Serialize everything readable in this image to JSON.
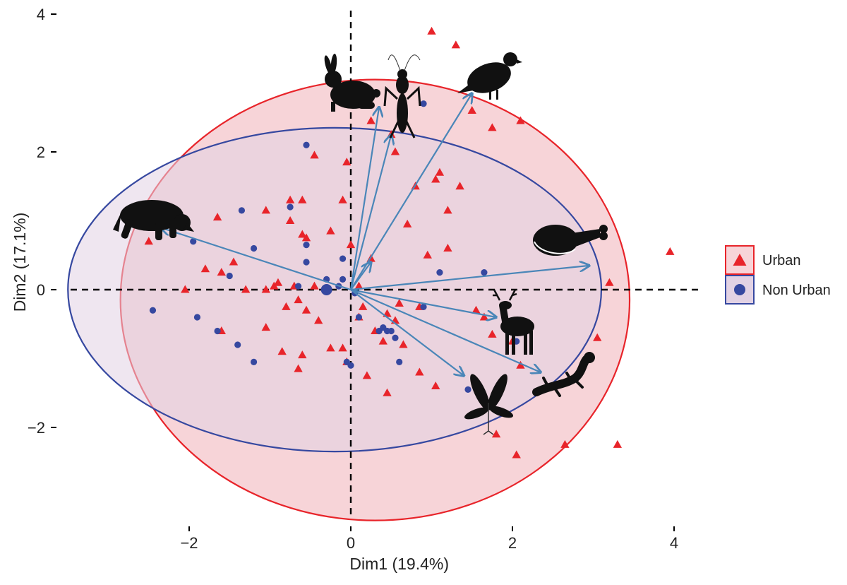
{
  "chart_data": {
    "type": "scatter",
    "subtype": "pca-biplot",
    "xlabel": "Dim1 (19.4%)",
    "ylabel": "Dim2 (17.1%)",
    "xlim": [
      -3.6,
      4.6
    ],
    "ylim": [
      -3.4,
      4.1
    ],
    "x_ticks": [
      -2,
      0,
      2,
      4
    ],
    "y_ticks": [
      -2,
      0,
      2,
      4
    ],
    "x_tick_labels": [
      "−2",
      "0",
      "2",
      "4"
    ],
    "y_tick_labels": [
      "−2",
      "0",
      "2",
      "4"
    ],
    "grid": false,
    "zero_lines": "dashed",
    "legend_position": "right",
    "series": [
      {
        "name": "Urban",
        "marker": "triangle",
        "color": "#e8242a",
        "fill": "#f7d4d8",
        "ellipse": {
          "center": [
            0.3,
            -0.15
          ],
          "rx": 3.15,
          "ry": 3.2
        },
        "points": [
          [
            1.0,
            3.75
          ],
          [
            1.3,
            3.55
          ],
          [
            1.5,
            2.6
          ],
          [
            1.75,
            2.35
          ],
          [
            2.1,
            2.45
          ],
          [
            0.25,
            2.45
          ],
          [
            0.5,
            2.25
          ],
          [
            0.55,
            2.0
          ],
          [
            -0.45,
            1.95
          ],
          [
            -0.05,
            1.85
          ],
          [
            1.1,
            1.7
          ],
          [
            1.05,
            1.6
          ],
          [
            0.8,
            1.5
          ],
          [
            1.35,
            1.5
          ],
          [
            -0.75,
            1.3
          ],
          [
            -0.6,
            1.3
          ],
          [
            -0.1,
            1.3
          ],
          [
            1.2,
            1.15
          ],
          [
            -1.05,
            1.15
          ],
          [
            -1.65,
            1.05
          ],
          [
            -0.75,
            1.0
          ],
          [
            0.7,
            0.95
          ],
          [
            -0.25,
            0.85
          ],
          [
            -0.6,
            0.8
          ],
          [
            -0.55,
            0.75
          ],
          [
            0.0,
            0.65
          ],
          [
            1.2,
            0.6
          ],
          [
            -1.45,
            0.4
          ],
          [
            0.25,
            0.45
          ],
          [
            0.95,
            0.5
          ],
          [
            -1.8,
            0.3
          ],
          [
            -2.5,
            0.7
          ],
          [
            -1.6,
            0.25
          ],
          [
            -2.05,
            0.0
          ],
          [
            -1.3,
            0.0
          ],
          [
            -1.05,
            0.0
          ],
          [
            -0.95,
            0.05
          ],
          [
            -0.9,
            0.1
          ],
          [
            -0.7,
            0.05
          ],
          [
            -0.45,
            0.05
          ],
          [
            0.1,
            0.05
          ],
          [
            -0.65,
            -0.15
          ],
          [
            -0.8,
            -0.25
          ],
          [
            -0.55,
            -0.3
          ],
          [
            0.15,
            -0.25
          ],
          [
            0.6,
            -0.2
          ],
          [
            0.85,
            -0.25
          ],
          [
            -0.4,
            -0.45
          ],
          [
            0.1,
            -0.4
          ],
          [
            0.45,
            -0.35
          ],
          [
            0.55,
            -0.45
          ],
          [
            -1.05,
            -0.55
          ],
          [
            -1.6,
            -0.6
          ],
          [
            1.55,
            -0.3
          ],
          [
            1.65,
            -0.4
          ],
          [
            0.3,
            -0.6
          ],
          [
            0.4,
            -0.75
          ],
          [
            1.75,
            -0.65
          ],
          [
            -0.85,
            -0.9
          ],
          [
            -0.6,
            -0.95
          ],
          [
            -0.25,
            -0.85
          ],
          [
            -0.1,
            -0.85
          ],
          [
            0.65,
            -0.8
          ],
          [
            2.0,
            -0.75
          ],
          [
            -0.65,
            -1.15
          ],
          [
            -0.05,
            -1.05
          ],
          [
            0.85,
            -1.2
          ],
          [
            2.1,
            -1.1
          ],
          [
            0.2,
            -1.25
          ],
          [
            1.05,
            -1.4
          ],
          [
            0.45,
            -1.5
          ],
          [
            3.2,
            0.1
          ],
          [
            3.05,
            -0.7
          ],
          [
            3.95,
            0.55
          ],
          [
            2.65,
            -2.25
          ],
          [
            3.3,
            -2.25
          ],
          [
            1.8,
            -2.1
          ],
          [
            2.05,
            -2.4
          ]
        ]
      },
      {
        "name": "Non Urban",
        "marker": "circle",
        "color": "#3648a0",
        "fill": "#e2d2e4",
        "ellipse": {
          "center": [
            -0.2,
            0.0
          ],
          "rx": 3.3,
          "ry": 2.35
        },
        "points": [
          [
            0.9,
            2.7
          ],
          [
            -0.55,
            2.1
          ],
          [
            -1.35,
            1.15
          ],
          [
            -0.75,
            1.2
          ],
          [
            -1.2,
            0.6
          ],
          [
            -1.95,
            0.7
          ],
          [
            -0.55,
            0.65
          ],
          [
            -0.55,
            0.4
          ],
          [
            -0.3,
            0.15
          ],
          [
            -0.15,
            0.05
          ],
          [
            -0.1,
            0.45
          ],
          [
            -0.1,
            0.15
          ],
          [
            -1.5,
            0.2
          ],
          [
            -0.65,
            0.05
          ],
          [
            1.1,
            0.25
          ],
          [
            1.65,
            0.25
          ],
          [
            0.05,
            -0.05
          ],
          [
            -2.45,
            -0.3
          ],
          [
            -1.9,
            -0.4
          ],
          [
            -1.65,
            -0.6
          ],
          [
            0.1,
            -0.4
          ],
          [
            0.9,
            -0.25
          ],
          [
            0.35,
            -0.6
          ],
          [
            0.4,
            -0.55
          ],
          [
            0.45,
            -0.6
          ],
          [
            0.5,
            -0.6
          ],
          [
            0.55,
            -0.7
          ],
          [
            -1.4,
            -0.8
          ],
          [
            -1.2,
            -1.05
          ],
          [
            -0.05,
            -1.05
          ],
          [
            0.0,
            -1.1
          ],
          [
            0.6,
            -1.05
          ],
          [
            1.45,
            -1.45
          ],
          [
            1.9,
            -0.4
          ],
          [
            2.05,
            -0.75
          ]
        ],
        "centroid": [
          -0.3,
          0.0
        ]
      }
    ],
    "loadings": [
      {
        "animal": "rabbit",
        "x": 0.35,
        "y": 2.65
      },
      {
        "animal": "cricket",
        "x": 0.5,
        "y": 2.25
      },
      {
        "animal": "pigeon",
        "x": 1.5,
        "y": 2.85
      },
      {
        "animal": "pigeon-inner",
        "x": 0.25,
        "y": 0.4
      },
      {
        "animal": "raccoon",
        "x": -2.35,
        "y": 0.9
      },
      {
        "animal": "ham",
        "x": 2.95,
        "y": 0.35
      },
      {
        "animal": "deer",
        "x": 1.8,
        "y": -0.4
      },
      {
        "animal": "salamander",
        "x": 2.35,
        "y": -1.2
      },
      {
        "animal": "plant",
        "x": 1.4,
        "y": -1.25
      }
    ],
    "arrow_color": "#4a86b8"
  }
}
